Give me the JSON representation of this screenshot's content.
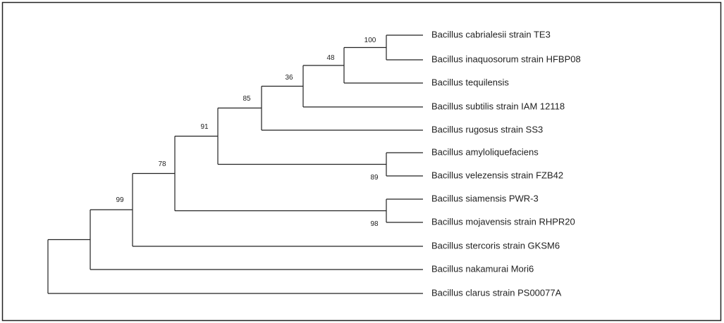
{
  "taxa": [
    "Bacillus cabrialesii strain TE3",
    "Bacillus inaquosorum strain HFBP08",
    "Bacillus tequilensis",
    "Bacillus subtilis strain IAM 12118",
    "Bacillus rugosus strain SS3",
    "Bacillus amyloliquefaciens",
    "Bacillus velezensis strain FZB42",
    "Bacillus siamensis PWR-3",
    "Bacillus mojavensis strain RHPR20",
    "Bacillus stercoris strain GKSM6",
    "Bacillus nakamurai Mori6",
    "Bacillus clarus strain PS00077A"
  ],
  "bootstrap": [
    100,
    48,
    36,
    85,
    91,
    78,
    99,
    89,
    98
  ]
}
